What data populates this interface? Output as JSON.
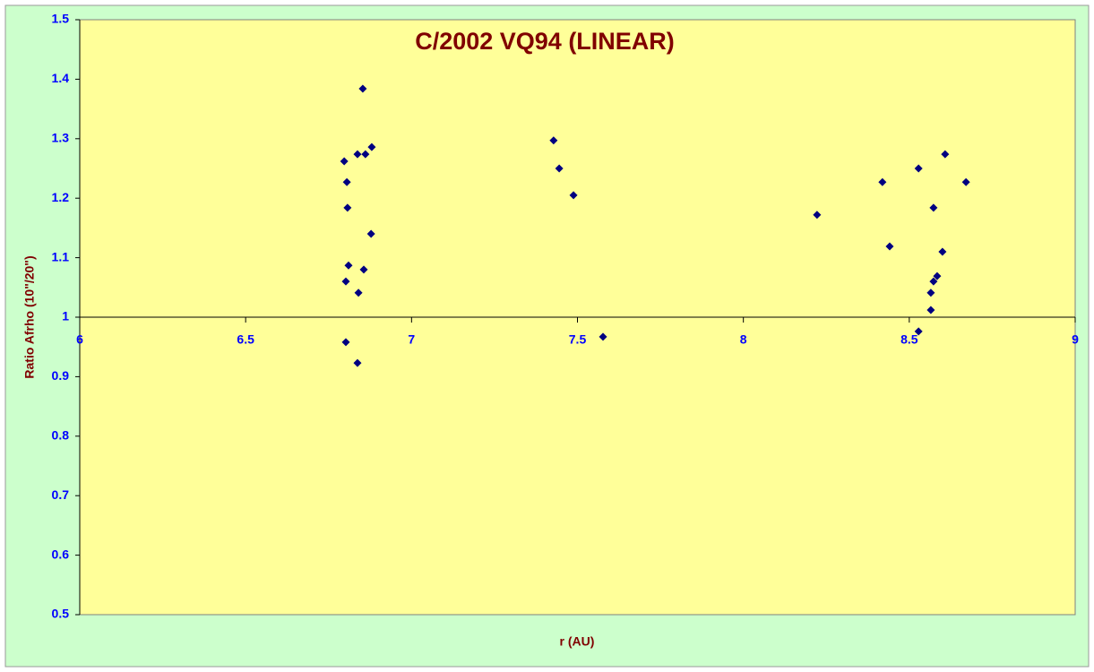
{
  "chart_data": {
    "type": "scatter",
    "title": "C/2002 VQ94 (LINEAR)",
    "x_label": "r (AU)",
    "y_label": "Ratio Afrho (10\"/20\")",
    "x": [
      6.797,
      6.805,
      6.807,
      6.81,
      6.802,
      6.802,
      6.837,
      6.853,
      6.861,
      6.88,
      6.878,
      6.856,
      6.84,
      6.837,
      7.428,
      7.445,
      7.488,
      7.577,
      8.222,
      8.419,
      8.441,
      8.528,
      8.528,
      8.608,
      8.573,
      8.6,
      8.584,
      8.573,
      8.565,
      8.565,
      8.671
    ],
    "y": [
      1.262,
      1.227,
      1.184,
      1.087,
      1.06,
      0.958,
      1.274,
      1.384,
      1.274,
      1.286,
      1.14,
      1.08,
      1.041,
      0.923,
      1.297,
      1.25,
      1.205,
      0.967,
      1.172,
      1.227,
      1.119,
      1.25,
      0.976,
      1.274,
      1.184,
      1.11,
      1.069,
      1.06,
      1.041,
      1.012,
      1.227
    ],
    "color": "#000080",
    "xlim": [
      6,
      9
    ],
    "xticks": [
      6,
      6.5,
      7,
      7.5,
      8,
      8.5,
      9
    ],
    "ylim": [
      0.5,
      1.5
    ],
    "yticks": [
      0.5,
      0.6,
      0.7,
      0.8,
      0.9,
      1,
      1.1,
      1.2,
      1.3,
      1.4,
      1.5
    ],
    "x_axis_crosses_at": 1,
    "grid": false
  }
}
